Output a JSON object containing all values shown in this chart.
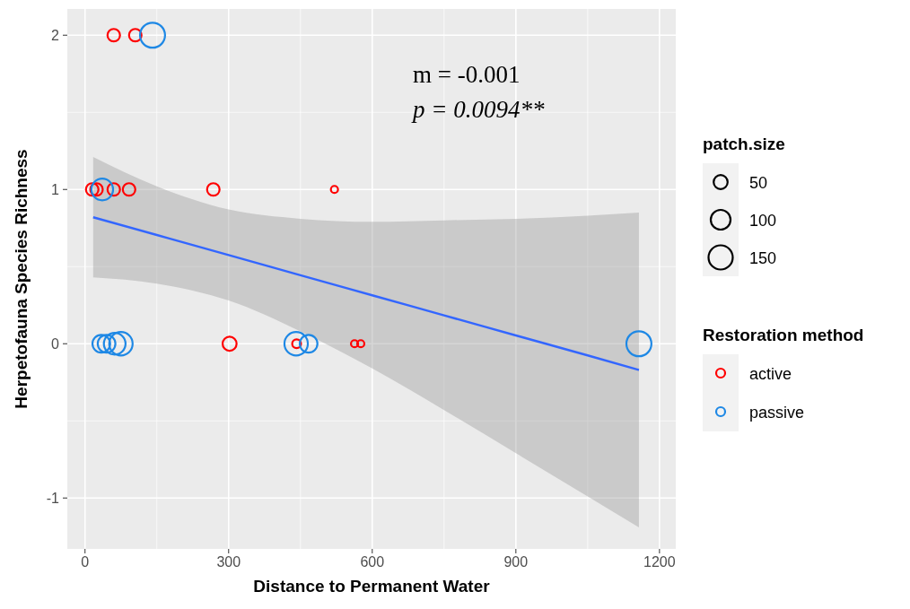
{
  "chart_data": {
    "type": "scatter",
    "xlabel": "Distance to Permanent Water",
    "ylabel": "Herpetofauna Species Richness",
    "legend_title": "Restoration method",
    "xlim": [
      -37,
      1234
    ],
    "ylim": [
      -1.33,
      2.17
    ],
    "xticks": [
      0,
      300,
      600,
      900,
      1200
    ],
    "yticks": [
      -1,
      0,
      1,
      2
    ],
    "grid": true,
    "legend": "right",
    "size_legend": [
      50,
      100,
      150
    ],
    "annotations": [
      "m = -0.001",
      "p = 0.0094**",
      "patch.size"
    ],
    "series": [
      {
        "name": "active",
        "color": "#ff0000",
        "marker": "circle",
        "x": [
          60,
          105,
          15,
          24,
          60,
          92,
          268,
          521,
          302,
          442,
          563,
          576
        ],
        "values": [
          2,
          2,
          1,
          1,
          1,
          1,
          1,
          1,
          0,
          0,
          0,
          0
        ],
        "sizes": [
          40,
          40,
          40,
          40,
          40,
          40,
          40,
          13,
          50,
          20,
          13,
          13
        ]
      },
      {
        "name": "passive",
        "color": "#1e88e5",
        "marker": "circle",
        "x": [
          141,
          36,
          34,
          45,
          62,
          75,
          441,
          467,
          1157
        ],
        "values": [
          2,
          1,
          0,
          0,
          0,
          0,
          0,
          0,
          0
        ],
        "sizes": [
          160,
          120,
          80,
          80,
          120,
          140,
          140,
          80,
          160
        ]
      },
      {
        "type": "line",
        "color": "#3366ff",
        "marker": "none",
        "x": [
          17,
          150,
          300,
          450,
          600,
          750,
          900,
          1050,
          1157
        ],
        "values": [
          0.82,
          0.705,
          0.575,
          0.444,
          0.314,
          0.184,
          0.054,
          -0.076,
          -0.17
        ],
        "upper": [
          1.21,
          1.02,
          0.87,
          0.81,
          0.79,
          0.8,
          0.81,
          0.83,
          0.85
        ],
        "lower": [
          0.43,
          0.39,
          0.28,
          0.08,
          -0.16,
          -0.43,
          -0.71,
          -0.99,
          -1.19
        ]
      }
    ]
  }
}
